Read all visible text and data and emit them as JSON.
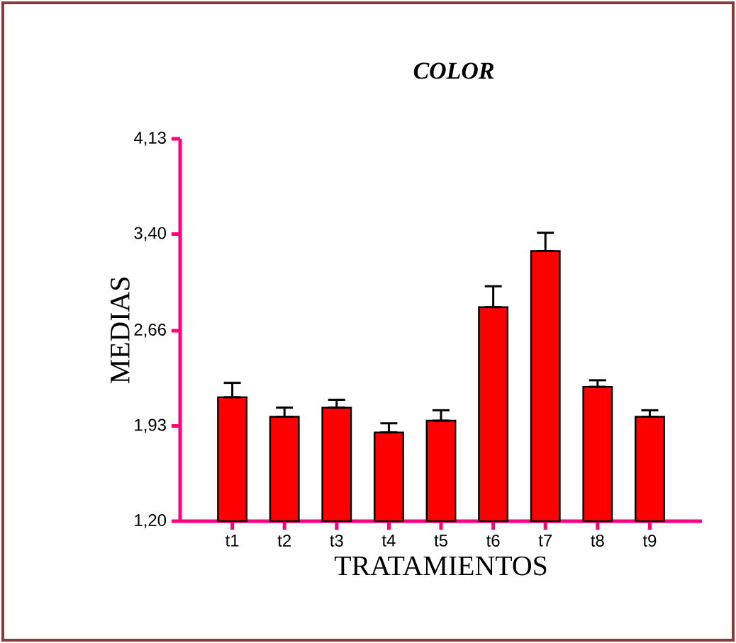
{
  "chart_data": {
    "type": "bar",
    "title": "COLOR",
    "xlabel": "TRATAMIENTOS",
    "ylabel": "MEDIAS",
    "categories": [
      "t1",
      "t2",
      "t3",
      "t4",
      "t5",
      "t6",
      "t7",
      "t8",
      "t9"
    ],
    "values": [
      2.15,
      2.0,
      2.07,
      1.88,
      1.97,
      2.84,
      3.27,
      2.23,
      2.0
    ],
    "errors": [
      [
        2.15,
        2.26
      ],
      [
        2.0,
        2.07
      ],
      [
        2.07,
        2.13
      ],
      [
        1.88,
        1.95
      ],
      [
        1.97,
        2.05
      ],
      [
        2.84,
        3.0
      ],
      [
        3.27,
        3.41
      ],
      [
        2.23,
        2.28
      ],
      [
        2.0,
        2.05
      ]
    ],
    "color": "#ff0000",
    "ylim": [
      1.2,
      4.13
    ],
    "yticks": [
      {
        "value": 1.2,
        "label": "1,20"
      },
      {
        "value": 1.93,
        "label": "1,93"
      },
      {
        "value": 2.66,
        "label": "2,66"
      },
      {
        "value": 3.4,
        "label": "3,40"
      },
      {
        "value": 4.13,
        "label": "4,13"
      }
    ],
    "grid": false
  }
}
